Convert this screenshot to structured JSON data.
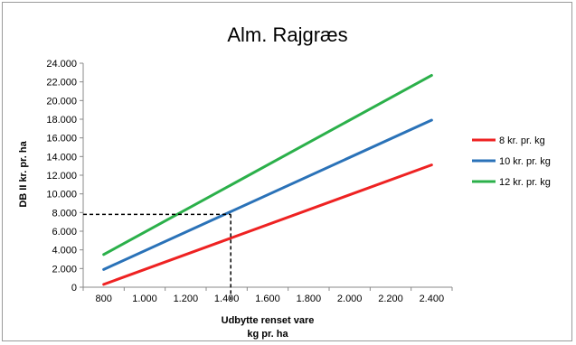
{
  "chart_data": {
    "type": "line",
    "title": "Alm. Rajgræs",
    "xlabel_lines": [
      "Udbytte renset vare",
      "kg pr.  ha"
    ],
    "ylabel": "DB II kr. pr. ha",
    "x": [
      800,
      2400
    ],
    "x_ticks": [
      "800",
      "1.000",
      "1.200",
      "1.400",
      "1.600",
      "1.800",
      "2.000",
      "2.200",
      "2.400"
    ],
    "x_tick_values": [
      800,
      1000,
      1200,
      1400,
      1600,
      1800,
      2000,
      2200,
      2400
    ],
    "y_ticks": [
      "0",
      "2.000",
      "4.000",
      "6.000",
      "8.000",
      "10.000",
      "12.000",
      "14.000",
      "16.000",
      "18.000",
      "20.000",
      "22.000",
      "24.000"
    ],
    "y_tick_values": [
      0,
      2000,
      4000,
      6000,
      8000,
      10000,
      12000,
      14000,
      16000,
      18000,
      20000,
      22000,
      24000
    ],
    "xlim": [
      700,
      2500
    ],
    "ylim": [
      0,
      24000
    ],
    "grid": false,
    "legend_position": "right",
    "series": [
      {
        "name": "8 kr. pr. kg",
        "color": "#ee2222",
        "values": [
          300,
          13100
        ]
      },
      {
        "name": "10 kr. pr. kg",
        "color": "#2a72b8",
        "values": [
          1900,
          17900
        ]
      },
      {
        "name": "12 kr. pr. kg",
        "color": "#2bb04a",
        "values": [
          3500,
          22700
        ]
      }
    ],
    "reference_point": {
      "x": 1420,
      "y": 7800
    }
  }
}
